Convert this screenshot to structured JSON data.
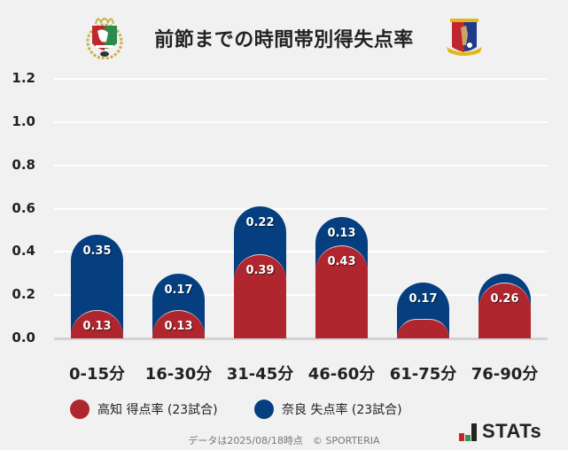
{
  "header": {
    "title": "前節までの時間帯別得失点率",
    "home_logo": "kochi-crest-icon",
    "away_logo": "nara-crest-icon"
  },
  "colors": {
    "home": "#b0262e",
    "away": "#053f80",
    "background": "#f1f1f1",
    "grid": "#ffffff"
  },
  "chart_data": {
    "type": "bar",
    "stacked": true,
    "title": "前節までの時間帯別得失点率",
    "categories": [
      "0-15分",
      "16-30分",
      "31-45分",
      "46-60分",
      "61-75分",
      "76-90分"
    ],
    "series": [
      {
        "name": "高知 得点率 (23試合)",
        "color": "#b0262e",
        "values": [
          0.13,
          0.13,
          0.39,
          0.43,
          0.09,
          0.26
        ],
        "labels": [
          "0.13",
          "0.13",
          "0.39",
          "0.43",
          "",
          "0.26"
        ]
      },
      {
        "name": "奈良 失点率 (23試合)",
        "color": "#053f80",
        "values": [
          0.35,
          0.17,
          0.22,
          0.13,
          0.17,
          0.04
        ],
        "labels": [
          "0.35",
          "0.17",
          "0.22",
          "0.13",
          "0.17",
          ""
        ]
      }
    ],
    "yticks": [
      "0.0",
      "0.2",
      "0.4",
      "0.6",
      "0.8",
      "1.0",
      "1.2"
    ],
    "ylim": [
      0,
      1.2
    ],
    "xlabel": "",
    "ylabel": "",
    "grid": true,
    "legend_position": "bottom"
  },
  "legend": [
    {
      "label": "高知 得点率 (23試合)",
      "color": "#b0262e"
    },
    {
      "label": "奈良 失点率 (23試合)",
      "color": "#053f80"
    }
  ],
  "footer": {
    "note": "データは2025/08/18時点　© SPORTERIA",
    "brand": "STATs"
  }
}
